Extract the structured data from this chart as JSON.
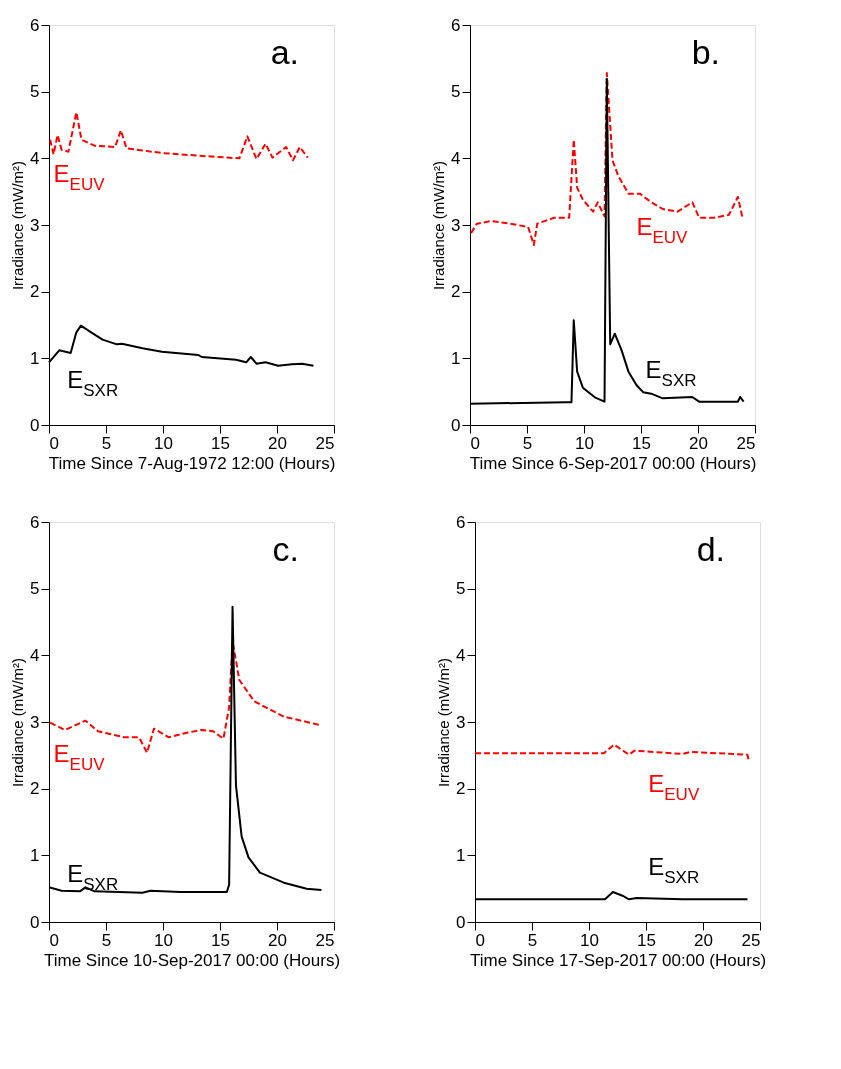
{
  "chart_data": [
    {
      "type": "line",
      "annotations": [
        "a."
      ],
      "xlabel": "Time Since 7-Aug-1972 12:00 (Hours)",
      "ylabel": "Irradiance (mW/m²)",
      "xlim": [
        0,
        25
      ],
      "xticks": [
        0,
        5,
        10,
        15,
        20,
        25
      ],
      "ylim": [
        0,
        6
      ],
      "yticks": [
        0,
        1,
        2,
        3,
        4,
        5,
        6
      ],
      "grid": false,
      "legend": false,
      "series": [
        {
          "name": "E$_{EUV}$",
          "color": "#ff0000",
          "line_style": "dashed",
          "x": [
            0.1,
            0.4,
            0.75,
            1.1,
            1.7,
            2.4,
            2.85,
            4.0,
            5.8,
            6.3,
            6.8,
            9.9,
            13.1,
            16.7,
            17.4,
            18.2,
            19.0,
            19.6,
            20.8,
            21.4,
            22.0,
            22.7
          ],
          "values": [
            4.28,
            4.06,
            4.35,
            4.13,
            4.1,
            4.69,
            4.28,
            4.19,
            4.17,
            4.42,
            4.15,
            4.08,
            4.04,
            4.0,
            4.33,
            3.99,
            4.22,
            4.01,
            4.17,
            3.97,
            4.17,
            4.01
          ]
        },
        {
          "name": "E$_{SXR}$",
          "color": "#000000",
          "line_style": "solid",
          "x": [
            0,
            0.9,
            1.9,
            2.4,
            2.8,
            3.7,
            4.7,
            5.96,
            6.4,
            8.2,
            9.9,
            13.1,
            13.4,
            16.4,
            17.3,
            17.7,
            18.2,
            19.0,
            20.1,
            21.3,
            22.2,
            23.2
          ],
          "values": [
            0.94,
            1.12,
            1.08,
            1.39,
            1.49,
            1.39,
            1.28,
            1.21,
            1.22,
            1.15,
            1.1,
            1.05,
            1.02,
            0.98,
            0.94,
            1.02,
            0.92,
            0.94,
            0.89,
            0.91,
            0.92,
            0.89
          ]
        }
      ]
    },
    {
      "type": "line",
      "annotations": [
        "b."
      ],
      "xlabel": "Time Since 6-Sep-2017 00:00 (Hours)",
      "ylabel": "Irradiance (mW/m²)",
      "xlim": [
        0,
        25
      ],
      "xticks": [
        0,
        5,
        10,
        15,
        20,
        25
      ],
      "ylim": [
        0,
        6
      ],
      "yticks": [
        0,
        1,
        2,
        3,
        4,
        5,
        6
      ],
      "grid": false,
      "legend": false,
      "series": [
        {
          "name": "E$_{EUV}$",
          "color": "#ff0000",
          "line_style": "dashed",
          "x": [
            0.1,
            0.6,
            1.9,
            3.5,
            5.1,
            5.6,
            5.9,
            7.4,
            8.7,
            9.1,
            9.4,
            9.9,
            10.8,
            11.2,
            11.8,
            12.0,
            12.5,
            13.0,
            13.9,
            14.9,
            15.9,
            16.9,
            18.2,
            19.5,
            20.1,
            21.4,
            22.7,
            23.5,
            23.9
          ],
          "values": [
            2.88,
            3.02,
            3.06,
            3.02,
            2.97,
            2.7,
            3.02,
            3.11,
            3.11,
            4.28,
            3.56,
            3.38,
            3.2,
            3.34,
            3.13,
            5.28,
            3.97,
            3.74,
            3.47,
            3.47,
            3.34,
            3.24,
            3.2,
            3.34,
            3.11,
            3.11,
            3.15,
            3.42,
            3.11
          ]
        },
        {
          "name": "E$_{SXR}$",
          "color": "#000000",
          "line_style": "solid",
          "x": [
            0,
            8.4,
            8.9,
            9.1,
            9.4,
            9.9,
            11.0,
            11.8,
            12.0,
            12.3,
            12.7,
            13.3,
            13.9,
            14.6,
            15.2,
            15.9,
            16.9,
            19.5,
            20.1,
            23.5,
            23.7,
            24.0
          ],
          "values": [
            0.32,
            0.34,
            0.34,
            1.57,
            0.8,
            0.56,
            0.41,
            0.35,
            5.19,
            1.21,
            1.37,
            1.12,
            0.8,
            0.6,
            0.49,
            0.47,
            0.4,
            0.42,
            0.35,
            0.35,
            0.42,
            0.35
          ]
        }
      ]
    },
    {
      "type": "line",
      "annotations": [
        "c."
      ],
      "xlabel": "Time Since 10-Sep-2017 00:00 (Hours)",
      "ylabel": "Irradiance (mW/m²)",
      "xlim": [
        0,
        25
      ],
      "xticks": [
        0,
        5,
        10,
        15,
        20,
        25
      ],
      "ylim": [
        0,
        6
      ],
      "yticks": [
        0,
        1,
        2,
        3,
        4,
        5,
        6
      ],
      "grid": false,
      "legend": false,
      "series": [
        {
          "name": "E$_{EUV}$",
          "color": "#ff0000",
          "line_style": "dashed",
          "x": [
            0.1,
            1.4,
            3.2,
            4.3,
            6.6,
            7.9,
            8.6,
            9.2,
            10.5,
            12.1,
            13.4,
            14.4,
            15.3,
            15.8,
            16.1,
            16.7,
            18.0,
            20.6,
            23.9
          ],
          "values": [
            2.99,
            2.88,
            3.02,
            2.86,
            2.77,
            2.77,
            2.54,
            2.9,
            2.77,
            2.84,
            2.88,
            2.86,
            2.75,
            3.22,
            4.21,
            3.63,
            3.31,
            3.08,
            2.95
          ]
        },
        {
          "name": "E$_{SXR}$",
          "color": "#000000",
          "line_style": "solid",
          "x": [
            0,
            1.1,
            2.7,
            3.2,
            4.0,
            8.2,
            8.9,
            11.5,
            15.6,
            15.8,
            16.1,
            16.4,
            16.9,
            17.5,
            18.5,
            20.6,
            22.6,
            23.9
          ],
          "values": [
            0.52,
            0.47,
            0.46,
            0.52,
            0.46,
            0.44,
            0.47,
            0.45,
            0.45,
            0.56,
            4.73,
            2.05,
            1.28,
            0.97,
            0.74,
            0.59,
            0.5,
            0.48
          ]
        }
      ]
    },
    {
      "type": "line",
      "annotations": [
        "d."
      ],
      "xlabel": "Time Since 17-Sep-2017 00:00 (Hours)",
      "ylabel": "Irradiance (mW/m²)",
      "xlim": [
        0,
        25
      ],
      "xticks": [
        0,
        5,
        10,
        15,
        20,
        25
      ],
      "ylim": [
        0,
        6
      ],
      "yticks": [
        0,
        1,
        2,
        3,
        4,
        5,
        6
      ],
      "grid": false,
      "legend": false,
      "series": [
        {
          "name": "E$_{EUV}$",
          "color": "#ff0000",
          "line_style": "dashed",
          "x": [
            0,
            11.3,
            12.2,
            13.5,
            14.0,
            18.2,
            18.9,
            23.9,
            24.0
          ],
          "values": [
            2.53,
            2.53,
            2.66,
            2.51,
            2.57,
            2.52,
            2.55,
            2.51,
            2.43
          ]
        },
        {
          "name": "E$_{SXR}$",
          "color": "#000000",
          "line_style": "solid",
          "x": [
            0,
            11.4,
            12.1,
            13.0,
            13.5,
            14.2,
            18.2,
            23.9
          ],
          "values": [
            0.34,
            0.34,
            0.45,
            0.39,
            0.34,
            0.36,
            0.34,
            0.34
          ]
        }
      ]
    }
  ]
}
